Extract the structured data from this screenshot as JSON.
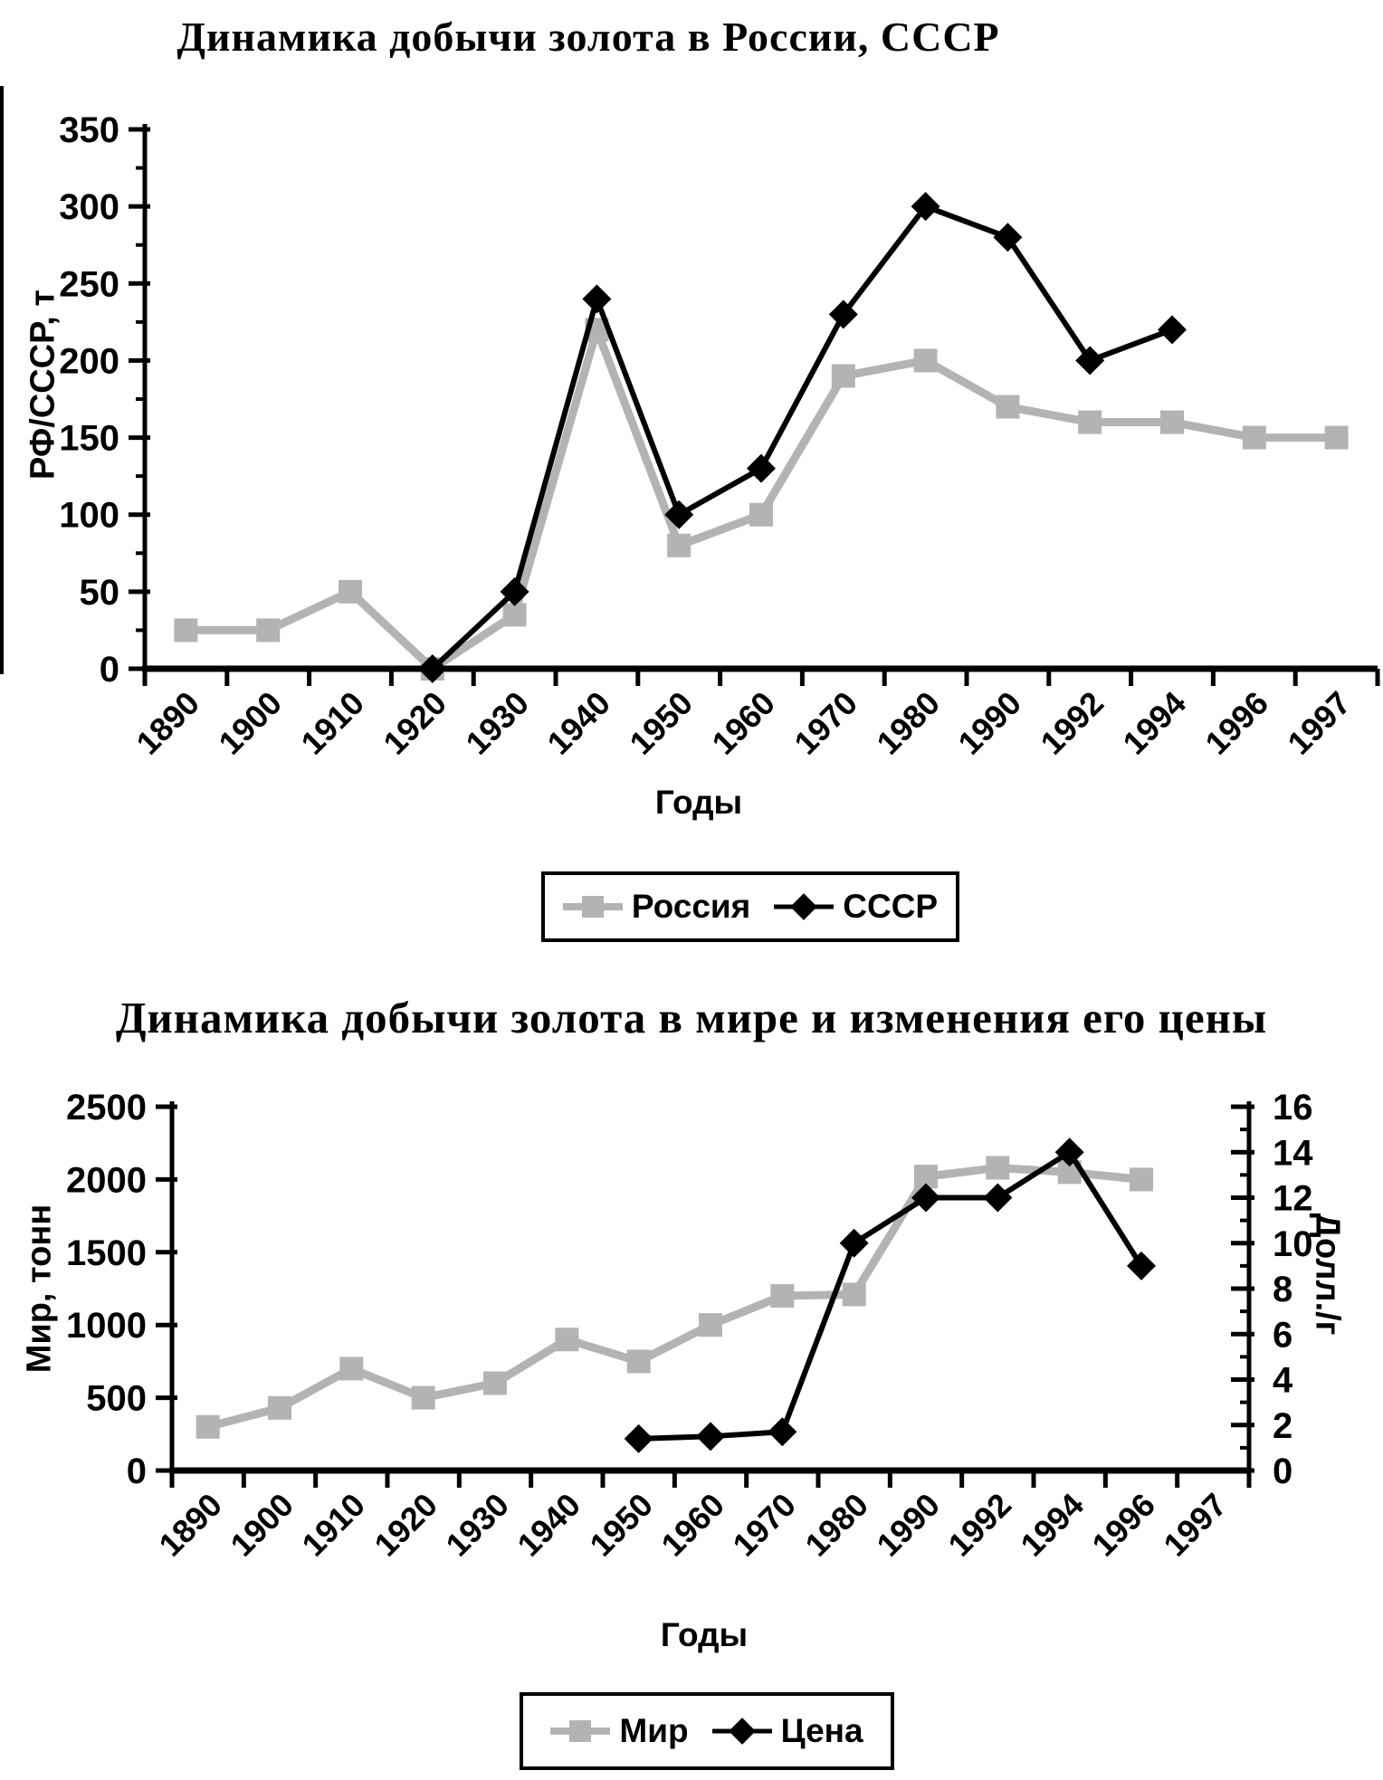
{
  "page": {
    "background": "#ffffff"
  },
  "colors": {
    "series_gray": "#b3b3b3",
    "series_black": "#000000",
    "axis": "#000000"
  },
  "chart_data": [
    {
      "type": "line",
      "title": "Динамика добычи золота в России, СССР",
      "xlabel": "Годы",
      "ylabel": "РФ/СССР, т",
      "ylim": [
        0,
        350
      ],
      "y_tick_step": 50,
      "grid": false,
      "legend_position": "bottom",
      "categories": [
        "1890",
        "1900",
        "1910",
        "1920",
        "1930",
        "1940",
        "1950",
        "1960",
        "1970",
        "1980",
        "1990",
        "1992",
        "1994",
        "1996",
        "1997"
      ],
      "series": [
        {
          "name": "Россия",
          "axis": "left",
          "marker": "square",
          "color": "#b3b3b3",
          "values": [
            25,
            25,
            50,
            0,
            35,
            220,
            80,
            100,
            190,
            200,
            170,
            160,
            160,
            150,
            150
          ]
        },
        {
          "name": "СССР",
          "axis": "left",
          "marker": "diamond",
          "color": "#000000",
          "values": [
            null,
            null,
            null,
            0,
            50,
            240,
            100,
            130,
            230,
            300,
            280,
            200,
            220,
            null,
            null
          ]
        }
      ]
    },
    {
      "type": "line",
      "title": "Динамика добычи золота в мире и изменения его цены",
      "xlabel": "Годы",
      "ylabel": "Мир, тонн",
      "y2label": "Долл./г",
      "ylim": [
        0,
        2500
      ],
      "y_tick_step": 500,
      "y2lim": [
        0,
        16
      ],
      "y2_tick_step": 2,
      "grid": false,
      "legend_position": "bottom",
      "categories": [
        "1890",
        "1900",
        "1910",
        "1920",
        "1930",
        "1940",
        "1950",
        "1960",
        "1970",
        "1980",
        "1990",
        "1992",
        "1994",
        "1996",
        "1997"
      ],
      "series": [
        {
          "name": "Мир",
          "axis": "left",
          "marker": "square",
          "color": "#b3b3b3",
          "values": [
            300,
            430,
            700,
            500,
            600,
            900,
            750,
            1000,
            1200,
            1210,
            2020,
            2080,
            2050,
            2000,
            null
          ]
        },
        {
          "name": "Цена",
          "axis": "right",
          "marker": "diamond",
          "color": "#000000",
          "values": [
            null,
            null,
            null,
            null,
            null,
            null,
            1.4,
            1.5,
            1.7,
            10,
            12,
            12,
            14,
            9,
            null
          ]
        }
      ]
    }
  ]
}
